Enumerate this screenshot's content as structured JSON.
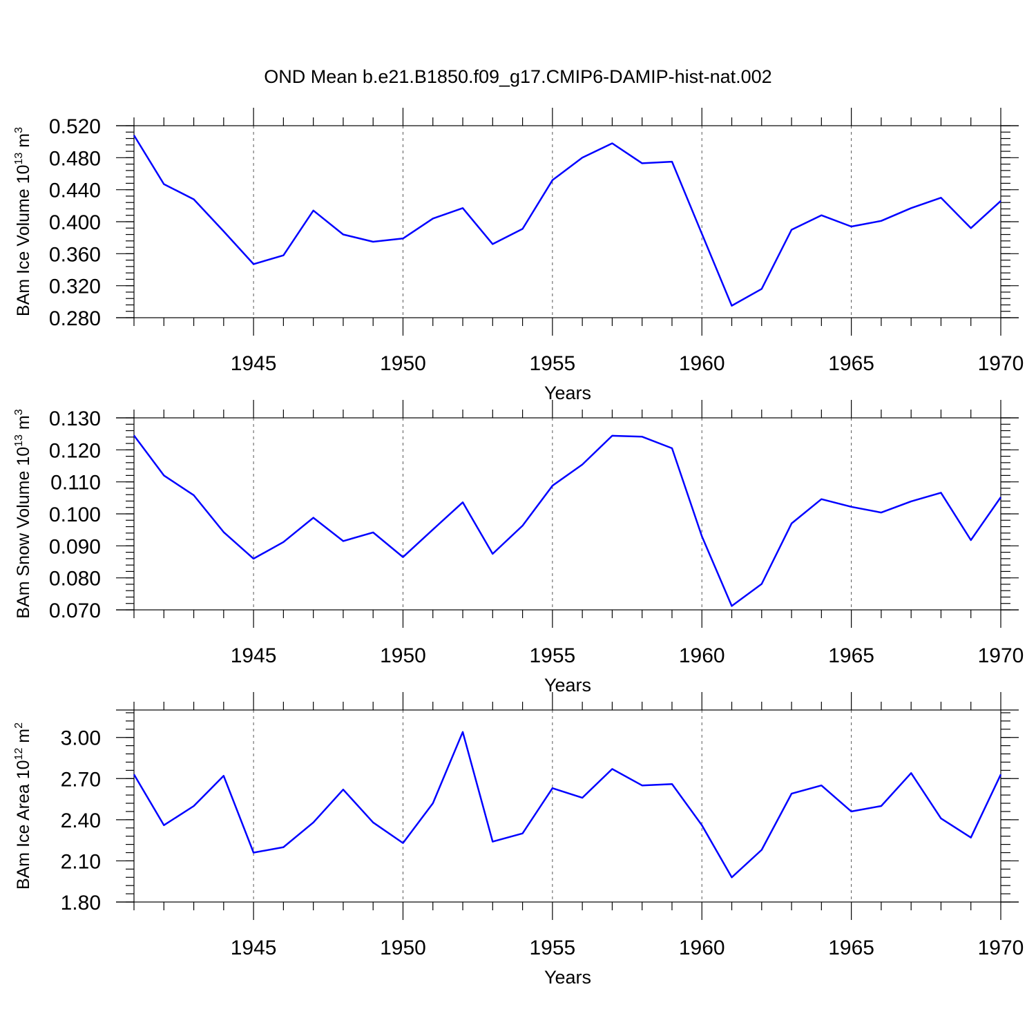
{
  "title": "OND Mean b.e21.B1850.f09_g17.CMIP6-DAMIP-hist-nat.002",
  "line_color": "#0000ff",
  "chart_data": [
    {
      "type": "line",
      "name": "ice-volume",
      "ylabel": "BAm Ice Volume 10",
      "ylabel_exp": "13",
      "ylabel_unit": " m",
      "ylabel_unit_exp": "3",
      "xlabel": "Years",
      "xlim": [
        1941,
        1970
      ],
      "ylim": [
        0.28,
        0.52
      ],
      "yticks": [
        0.28,
        0.32,
        0.36,
        0.4,
        0.44,
        0.48,
        0.52
      ],
      "ytick_labels": [
        "0.280",
        "0.320",
        "0.360",
        "0.400",
        "0.440",
        "0.480",
        "0.520"
      ],
      "xticks": [
        1945,
        1950,
        1955,
        1960,
        1965,
        1970
      ],
      "xtick_labels": [
        "1945",
        "1950",
        "1955",
        "1960",
        "1965",
        "1970"
      ],
      "x": [
        1941,
        1942,
        1943,
        1944,
        1945,
        1946,
        1947,
        1948,
        1949,
        1950,
        1951,
        1952,
        1953,
        1954,
        1955,
        1956,
        1957,
        1958,
        1959,
        1960,
        1961,
        1962,
        1963,
        1964,
        1965,
        1966,
        1967,
        1968,
        1969,
        1970
      ],
      "values": [
        0.508,
        0.447,
        0.428,
        0.388,
        0.347,
        0.358,
        0.414,
        0.384,
        0.375,
        0.379,
        0.404,
        0.417,
        0.372,
        0.391,
        0.452,
        0.48,
        0.498,
        0.473,
        0.475,
        0.385,
        0.295,
        0.316,
        0.39,
        0.408,
        0.394,
        0.401,
        0.417,
        0.43,
        0.392,
        0.426
      ]
    },
    {
      "type": "line",
      "name": "snow-volume",
      "ylabel": "BAm Snow Volume 10",
      "ylabel_exp": "13",
      "ylabel_unit": " m",
      "ylabel_unit_exp": "3",
      "xlabel": "Years",
      "xlim": [
        1941,
        1970
      ],
      "ylim": [
        0.07,
        0.13
      ],
      "yticks": [
        0.07,
        0.08,
        0.09,
        0.1,
        0.11,
        0.12,
        0.13
      ],
      "ytick_labels": [
        "0.070",
        "0.080",
        "0.090",
        "0.100",
        "0.110",
        "0.120",
        "0.130"
      ],
      "xticks": [
        1945,
        1950,
        1955,
        1960,
        1965,
        1970
      ],
      "xtick_labels": [
        "1945",
        "1950",
        "1955",
        "1960",
        "1965",
        "1970"
      ],
      "x": [
        1941,
        1942,
        1943,
        1944,
        1945,
        1946,
        1947,
        1948,
        1949,
        1950,
        1951,
        1952,
        1953,
        1954,
        1955,
        1956,
        1957,
        1958,
        1959,
        1960,
        1961,
        1962,
        1963,
        1964,
        1965,
        1966,
        1967,
        1968,
        1969,
        1970
      ],
      "values": [
        0.1245,
        0.112,
        0.1058,
        0.0943,
        0.086,
        0.0912,
        0.0988,
        0.0915,
        0.0942,
        0.0865,
        0.0951,
        0.1036,
        0.0875,
        0.0963,
        0.1088,
        0.1154,
        0.1244,
        0.1241,
        0.1205,
        0.093,
        0.0712,
        0.0781,
        0.097,
        0.1046,
        0.1022,
        0.1004,
        0.1039,
        0.1066,
        0.0918,
        0.1052
      ]
    },
    {
      "type": "line",
      "name": "ice-area",
      "ylabel": "BAm Ice Area 10",
      "ylabel_exp": "12",
      "ylabel_unit": " m",
      "ylabel_unit_exp": "2",
      "xlabel": "Years",
      "xlim": [
        1941,
        1970
      ],
      "ylim": [
        1.8,
        3.2
      ],
      "yticks": [
        1.8,
        2.1,
        2.4,
        2.7,
        3.0
      ],
      "ytick_labels": [
        "1.80",
        "2.10",
        "2.40",
        "2.70",
        "3.00"
      ],
      "xticks": [
        1945,
        1950,
        1955,
        1960,
        1965,
        1970
      ],
      "xtick_labels": [
        "1945",
        "1950",
        "1955",
        "1960",
        "1965",
        "1970"
      ],
      "x": [
        1941,
        1942,
        1943,
        1944,
        1945,
        1946,
        1947,
        1948,
        1949,
        1950,
        1951,
        1952,
        1953,
        1954,
        1955,
        1956,
        1957,
        1958,
        1959,
        1960,
        1961,
        1962,
        1963,
        1964,
        1965,
        1966,
        1967,
        1968,
        1969,
        1970
      ],
      "values": [
        2.73,
        2.36,
        2.5,
        2.72,
        2.16,
        2.2,
        2.38,
        2.62,
        2.38,
        2.23,
        2.52,
        3.04,
        2.24,
        2.3,
        2.63,
        2.56,
        2.77,
        2.65,
        2.66,
        2.36,
        1.98,
        2.18,
        2.59,
        2.65,
        2.46,
        2.5,
        2.74,
        2.41,
        2.27,
        2.73
      ]
    }
  ]
}
